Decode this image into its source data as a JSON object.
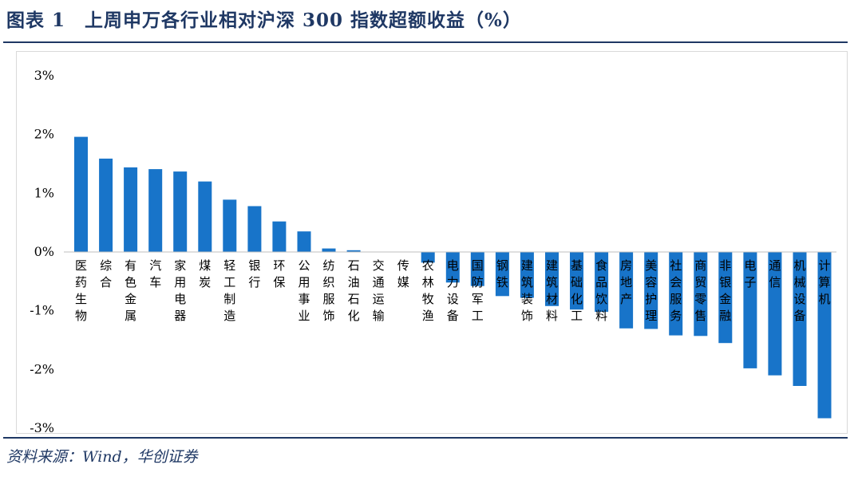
{
  "header": {
    "title": "图表 1　上周申万各行业相对沪深 300 指数超额收益（%）"
  },
  "footer": {
    "source": "资料来源：Wind，华创证券"
  },
  "colors": {
    "bar": "#1874c9",
    "rule": "#1f3864",
    "zero_line": "#bfbfbf"
  },
  "chart_data": {
    "type": "bar",
    "title": "",
    "xlabel": "",
    "ylabel": "",
    "ylim": [
      -3,
      3
    ],
    "y_ticks": [
      3,
      2,
      1,
      0,
      -1,
      -2,
      -3
    ],
    "y_tick_labels": [
      "3%",
      "2%",
      "1%",
      "0%",
      "-1%",
      "-2%",
      "-3%"
    ],
    "grid": false,
    "categories": [
      "医药生物",
      "综合",
      "有色金属",
      "汽车",
      "家用电器",
      "煤炭",
      "轻工制造",
      "银行",
      "环保",
      "公用事业",
      "纺织服饰",
      "石油石化",
      "交通运输",
      "传媒",
      "农林牧渔",
      "电力设备",
      "国防军工",
      "钢铁",
      "建筑装饰",
      "建筑材料",
      "基础化工",
      "食品饮料",
      "房地产",
      "美容护理",
      "社会服务",
      "商贸零售",
      "非银金融",
      "电子",
      "通信",
      "机械设备",
      "计算机"
    ],
    "values": [
      1.96,
      1.59,
      1.44,
      1.41,
      1.37,
      1.2,
      0.89,
      0.78,
      0.52,
      0.35,
      0.06,
      0.03,
      0.0,
      0.0,
      -0.18,
      -0.52,
      -0.58,
      -0.75,
      -0.78,
      -0.92,
      -0.98,
      -1.02,
      -1.3,
      -1.31,
      -1.42,
      -1.43,
      -1.55,
      -1.98,
      -2.1,
      -2.28,
      -2.83
    ]
  }
}
